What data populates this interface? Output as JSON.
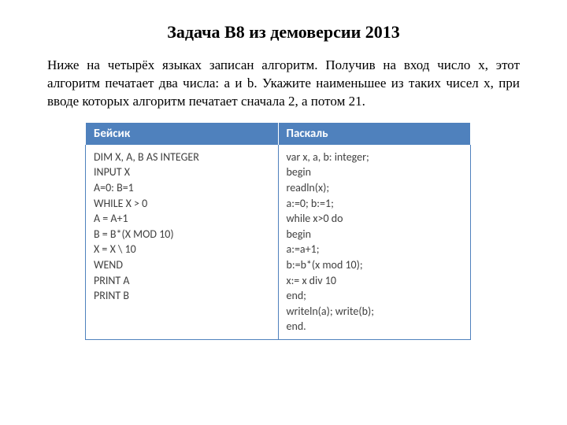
{
  "title": "Задача B8 из демоверсии 2013",
  "description": "Ниже на четырёх языках записан алгоритм. Получив на вход число x, этот алгоритм печатает два числа: a и b. Укажите наименьшее из таких чисел x, при вводе которых алгоритм печатает сначала 2, а потом 21.",
  "table": {
    "header_bg": "#4f81bd",
    "header_fg": "#ffffff",
    "border_color": "#4f81bd",
    "cell_fg": "#404040",
    "columns": [
      "Бейсик",
      "Паскаль"
    ],
    "basic_lines": [
      "DIM X, A, B AS INTEGER",
      "INPUT X",
      "A=0: B=1",
      "WHILE X > 0",
      "A = A+1",
      "B = B*(X MOD 10)",
      "X = X \\ 10",
      "WEND",
      "PRINT A",
      "PRINT B"
    ],
    "pascal_lines": [
      "var x, a, b: integer;",
      "begin",
      "readln(x);",
      "a:=0; b:=1;",
      "while x>0 do",
      "begin",
      "a:=a+1;",
      "b:=b*(x mod 10);",
      "x:= x div 10",
      "end;",
      "writeln(a); write(b);",
      "end."
    ]
  }
}
